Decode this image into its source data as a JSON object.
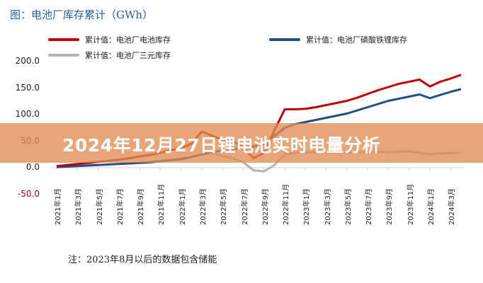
{
  "chart_data": {
    "type": "line",
    "title": "图：电池厂库存累计（GWh）",
    "xlabel": "",
    "ylabel": "",
    "ylim": [
      -50,
      200
    ],
    "yticks": [
      "200.0",
      "150.0",
      "100.0",
      "50.0",
      "0.0",
      "-50.0"
    ],
    "ytick_values": [
      200,
      150,
      100,
      50,
      0,
      -50
    ],
    "xtick_labels": [
      "2021年1月",
      "2021年3月",
      "2021年5月",
      "2021年7月",
      "2021年9月",
      "2021年11月",
      "2022年1月",
      "2022年3月",
      "2022年5月",
      "2022年7月",
      "2022年9月",
      "2022年11月",
      "2023年1月",
      "2023年3月",
      "2023年5月",
      "2023年7月",
      "2023年9月",
      "2023年11月",
      "2024年1月",
      "2024年3月"
    ],
    "legend_position": "top",
    "grid": false,
    "series": [
      {
        "name": "累计值：电池厂电池库存",
        "color": "#c00000",
        "values": [
          3,
          5,
          7,
          9,
          11,
          13,
          15,
          18,
          21,
          24,
          28,
          33,
          37,
          45,
          68,
          60,
          52,
          50,
          38,
          18,
          28,
          70,
          110,
          110,
          111,
          114,
          118,
          122,
          126,
          132,
          139,
          146,
          152,
          158,
          162,
          166,
          153,
          162,
          168,
          175
        ]
      },
      {
        "name": "累计值：电池厂磷酸铁锂库存",
        "color": "#1f4e8c",
        "values": [
          1,
          2,
          3,
          4,
          5,
          6,
          7,
          8,
          9,
          10,
          12,
          14,
          16,
          20,
          25,
          30,
          32,
          35,
          38,
          40,
          45,
          60,
          75,
          82,
          86,
          90,
          94,
          98,
          102,
          108,
          114,
          120,
          126,
          130,
          134,
          138,
          131,
          137,
          143,
          148
        ]
      },
      {
        "name": "累计值：电池厂三元库存",
        "color": "#b3b3b3",
        "values": [
          2,
          3,
          4,
          5,
          5,
          6,
          7,
          8,
          9,
          11,
          13,
          15,
          17,
          20,
          25,
          28,
          22,
          18,
          10,
          -5,
          -7,
          5,
          25,
          28,
          29,
          29,
          28,
          29,
          28,
          29,
          29,
          30,
          29,
          30,
          31,
          28,
          25,
          27,
          28,
          28
        ]
      }
    ]
  },
  "banner": {
    "text": "2024年12月27日锂电池实时电量分析"
  },
  "note": "注：2023年8月以后的数据包含储能"
}
